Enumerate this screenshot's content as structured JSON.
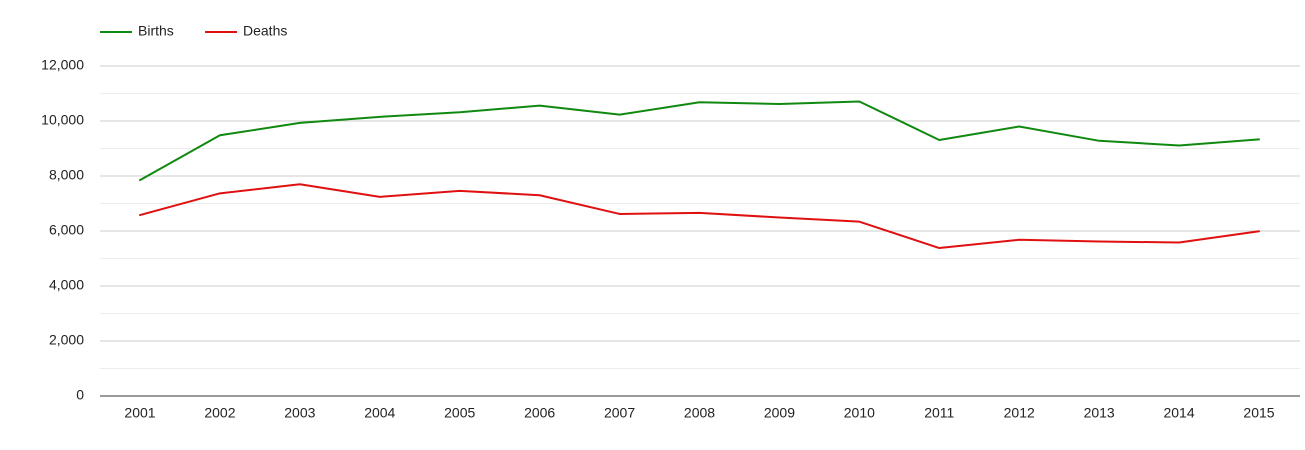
{
  "chart_data": {
    "type": "line",
    "title": "",
    "subtitle": "",
    "xlabel": "",
    "ylabel": "",
    "categories": [
      "2001",
      "2002",
      "2003",
      "2004",
      "2005",
      "2006",
      "2007",
      "2008",
      "2009",
      "2010",
      "2011",
      "2012",
      "2013",
      "2014",
      "2015"
    ],
    "y_ticks": [
      "0",
      "2,000",
      "4,000",
      "6,000",
      "8,000",
      "10,000",
      "12,000"
    ],
    "y_tick_values": [
      0,
      2000,
      4000,
      6000,
      8000,
      10000,
      12000
    ],
    "ylim": [
      0,
      12000
    ],
    "grid": true,
    "legend_position": "top-left",
    "series": [
      {
        "name": "Births",
        "color": "#108910",
        "values": [
          7850,
          9480,
          9930,
          10150,
          10320,
          10560,
          10230,
          10680,
          10620,
          10710,
          9310,
          9800,
          9280,
          9110,
          9330
        ]
      },
      {
        "name": "Deaths",
        "color": "#e01010",
        "values": [
          6580,
          7370,
          7700,
          7240,
          7460,
          7300,
          6620,
          6660,
          6490,
          6340,
          5380,
          5680,
          5620,
          5580,
          5990
        ]
      }
    ]
  }
}
